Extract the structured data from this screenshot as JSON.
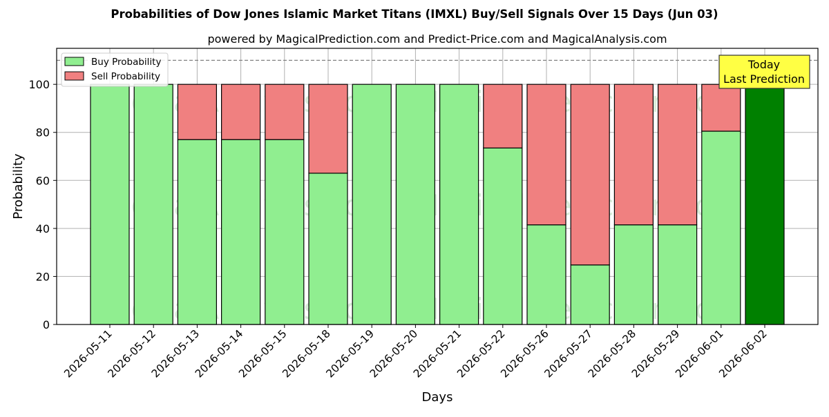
{
  "chart_data": {
    "type": "bar",
    "stacked": true,
    "title": "Probabilities of Dow Jones Islamic Market Titans (IMXL) Buy/Sell Signals Over 15 Days (Jun 03)",
    "subtitle": "powered by MagicalPrediction.com and Predict-Price.com and MagicalAnalysis.com",
    "xlabel": "Days",
    "ylabel": "Probability",
    "ylim": [
      0,
      115
    ],
    "yticks": [
      0,
      20,
      40,
      60,
      80,
      100
    ],
    "reference_line": 110,
    "grid": true,
    "legend_position": "top-left",
    "categories": [
      "2026-05-11",
      "2026-05-12",
      "2026-05-13",
      "2026-05-14",
      "2026-05-15",
      "2026-05-18",
      "2026-05-19",
      "2026-05-20",
      "2026-05-21",
      "2026-05-22",
      "2026-05-26",
      "2026-05-27",
      "2026-05-28",
      "2026-05-29",
      "2026-06-01",
      "2026-06-02"
    ],
    "series": [
      {
        "name": "Buy Probability",
        "color": "#90ee90",
        "values": [
          100,
          100,
          77,
          77,
          77,
          63,
          100,
          100,
          100,
          73.5,
          41.5,
          24.8,
          41.5,
          41.5,
          80.5,
          100
        ]
      },
      {
        "name": "Sell Probability",
        "color": "#f08080",
        "values": [
          0,
          0,
          23,
          23,
          23,
          37,
          0,
          0,
          0,
          26.5,
          58.5,
          75.2,
          58.5,
          58.5,
          19.5,
          0
        ]
      }
    ],
    "highlight": {
      "index": 15,
      "color": "#008000"
    },
    "annotation": {
      "text_line1": "Today",
      "text_line2": "Last Prediction",
      "color": "#ffff44"
    },
    "watermarks": [
      "MagicalAnalysis.com",
      "MagicalPrediction.com"
    ]
  }
}
